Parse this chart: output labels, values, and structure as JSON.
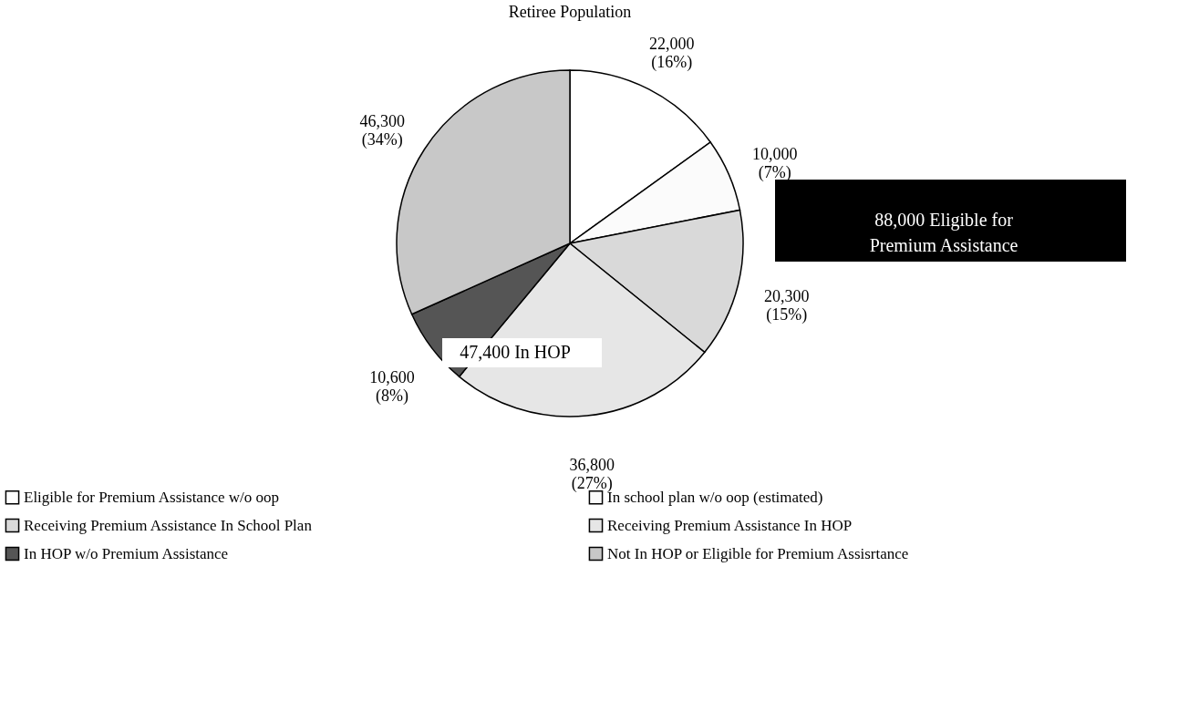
{
  "chart_data": {
    "type": "pie",
    "title": "Retiree Population",
    "categories": [
      "Eligible for Premium Assistance w/o oop",
      "In school plan w/o oop (estimated)",
      "Receiving Premium Assistance In School Plan",
      "Receiving Premium Assistance In HOP",
      "In HOP w/o Premium Assistance",
      "Not In HOP or Eligible for Premium Assisrtance"
    ],
    "values": [
      22000,
      10000,
      20300,
      36800,
      10600,
      46300
    ],
    "colors": [
      "#ffffff",
      "#fbfbfb",
      "#d9d9d9",
      "#e6e6e6",
      "#555555",
      "#c8c8c8"
    ],
    "value_labels": [
      "22,000\n(16%)",
      "10,000\n(7%)",
      "20,300\n(15%)",
      "36,800\n(27%)",
      "10,600\n(8%)",
      "46,300\n(34%)"
    ],
    "annotations": [
      "88,000 Eligible for Premium Assistance",
      "47,400 In HOP"
    ],
    "legend": "bottom"
  }
}
